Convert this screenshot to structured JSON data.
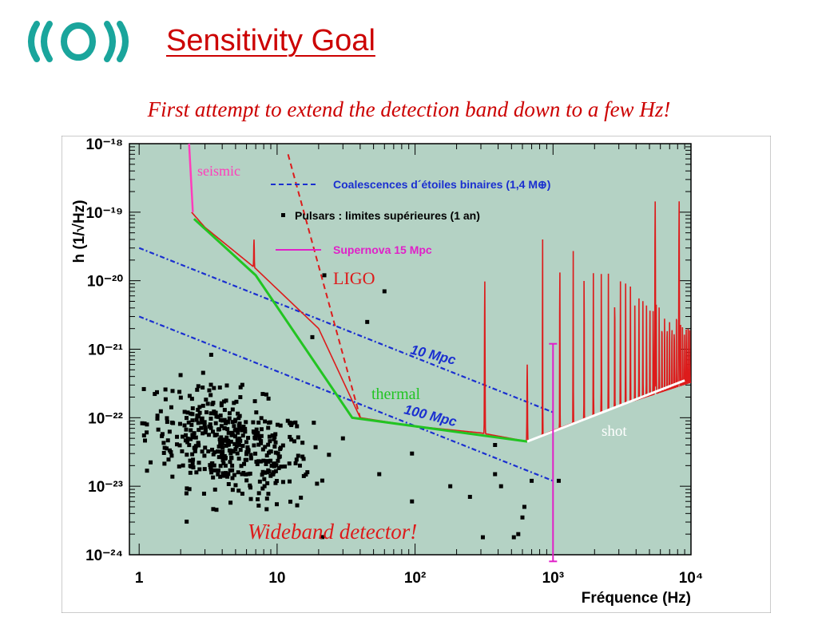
{
  "slide": {
    "title": "Sensitivity Goal",
    "subtitle": "First attempt to extend the detection band down to a few Hz!",
    "logo_icon": "virgo-logo"
  },
  "chart_data": {
    "type": "line",
    "x_scale": "log",
    "y_scale": "log",
    "xlim": [
      0.85,
      10000
    ],
    "ylim": [
      1e-24,
      1e-18
    ],
    "xlabel": "Fréquence (Hz)",
    "ylabel": "h (1/√Hz)",
    "x_tick_labels": [
      "1",
      "10",
      "10²",
      "10³",
      "10⁴"
    ],
    "x_tick_values": [
      1,
      10,
      100,
      1000,
      10000
    ],
    "y_tick_labels": [
      "10⁻¹⁸",
      "10⁻¹⁹",
      "10⁻²⁰",
      "10⁻²¹",
      "10⁻²²",
      "10⁻²³",
      "10⁻²⁴"
    ],
    "y_tick_values": [
      1e-18,
      1e-19,
      1e-20,
      1e-21,
      1e-22,
      1e-23,
      1e-24
    ],
    "grid": false,
    "background": "#b4d2c4",
    "legend": {
      "placement": "top-right",
      "entries": [
        {
          "label": "Coalescences d´étoiles binaires (1,4 M⊕)",
          "style": "dashed",
          "color": "#1a2fd0"
        },
        {
          "label": "Pulsars : limites supérieures (1 an)",
          "style": "marker",
          "color": "#000000"
        },
        {
          "label": "Supernova 15 Mpc",
          "style": "line",
          "color": "#e020c8"
        }
      ]
    },
    "annotations": {
      "seismic": "seismic",
      "ligo": "LIGO",
      "thermal": "thermal",
      "shot": "shot",
      "wideband": "Wideband detector!",
      "mpc10": "10 Mpc",
      "mpc100": "100 Mpc"
    },
    "colors": {
      "sensitivity": "#dd1b1b",
      "thermal": "#22c422",
      "shot": "#ffffff",
      "seismic": "#ff3dbb",
      "binary": "#1a2fd0",
      "supernova": "#e020c8",
      "ligo": "#dd1b1b",
      "pulsars": "#000000"
    },
    "series": [
      {
        "name": "seismic",
        "points": [
          [
            2.3,
            1e-18
          ],
          [
            2.45,
            1e-19
          ]
        ]
      },
      {
        "name": "thermal",
        "points": [
          [
            2.5,
            8e-20
          ],
          [
            7,
            1.2e-20
          ],
          [
            35,
            1e-22
          ],
          [
            650,
            4.5e-23
          ]
        ]
      },
      {
        "name": "shot",
        "points": [
          [
            650,
            4.5e-23
          ],
          [
            9000,
            3.5e-22
          ]
        ]
      },
      {
        "name": "LIGO",
        "points": [
          [
            12,
            7e-19
          ],
          [
            40,
            1e-22
          ]
        ]
      },
      {
        "name": "10 Mpc",
        "points": [
          [
            1,
            3e-20
          ],
          [
            1000,
            1.2e-22
          ]
        ]
      },
      {
        "name": "100 Mpc",
        "points": [
          [
            1,
            3e-21
          ],
          [
            1000,
            1.2e-23
          ]
        ]
      },
      {
        "name": "sensitivity",
        "base": [
          [
            2.4,
            1e-19
          ],
          [
            3,
            6e-20
          ],
          [
            7,
            1.5e-20
          ],
          [
            20,
            2e-21
          ],
          [
            40,
            1e-22
          ],
          [
            100,
            7.5e-23
          ],
          [
            300,
            6e-23
          ],
          [
            650,
            4.5e-23
          ],
          [
            1000,
            6.5e-23
          ],
          [
            3000,
            1.5e-22
          ],
          [
            10000,
            3.3e-22
          ]
        ],
        "resonances": [
          [
            6.8,
            4e-20,
            6.5
          ],
          [
            320,
            1e-20,
            0.016
          ],
          [
            650,
            6e-22,
            1
          ],
          [
            5500,
            1.5e-19,
            10
          ],
          [
            8200,
            1.5e-19,
            10
          ]
        ]
      },
      {
        "name": "supernova",
        "points": [
          [
            1000,
            1.2e-21
          ],
          [
            1000,
            8e-25
          ]
        ]
      }
    ],
    "pulsars": {
      "count": 460,
      "cluster_center": [
        4.5,
        4e-23
      ],
      "scatter_decades": 0.3
    }
  }
}
